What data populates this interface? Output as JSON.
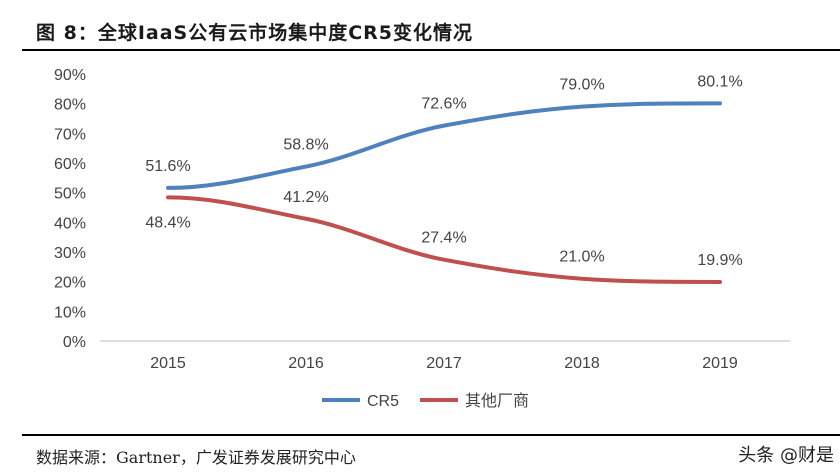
{
  "title": "图 8：全球IaaS公有云市场集中度CR5变化情况",
  "source": "数据来源：Gartner，广发证券发展研究中心",
  "watermark": "头条 @财是",
  "chart_data": {
    "type": "line",
    "title": "",
    "categories": [
      "2015",
      "2016",
      "2017",
      "2018",
      "2019"
    ],
    "ylim": [
      0,
      90
    ],
    "yticks": [
      "0%",
      "10%",
      "20%",
      "30%",
      "40%",
      "50%",
      "60%",
      "70%",
      "80%",
      "90%"
    ],
    "grid": false,
    "legend_position": "bottom",
    "series": [
      {
        "name": "CR5",
        "color": "#4F81BD",
        "values": [
          51.6,
          58.8,
          72.6,
          79.0,
          80.1
        ],
        "labels": [
          "51.6%",
          "58.8%",
          "72.6%",
          "79.0%",
          "80.1%"
        ]
      },
      {
        "name": "其他厂商",
        "color": "#C0504D",
        "values": [
          48.4,
          41.2,
          27.4,
          21.0,
          19.9
        ],
        "labels": [
          "48.4%",
          "41.2%",
          "27.4%",
          "21.0%",
          "19.9%"
        ]
      }
    ]
  }
}
